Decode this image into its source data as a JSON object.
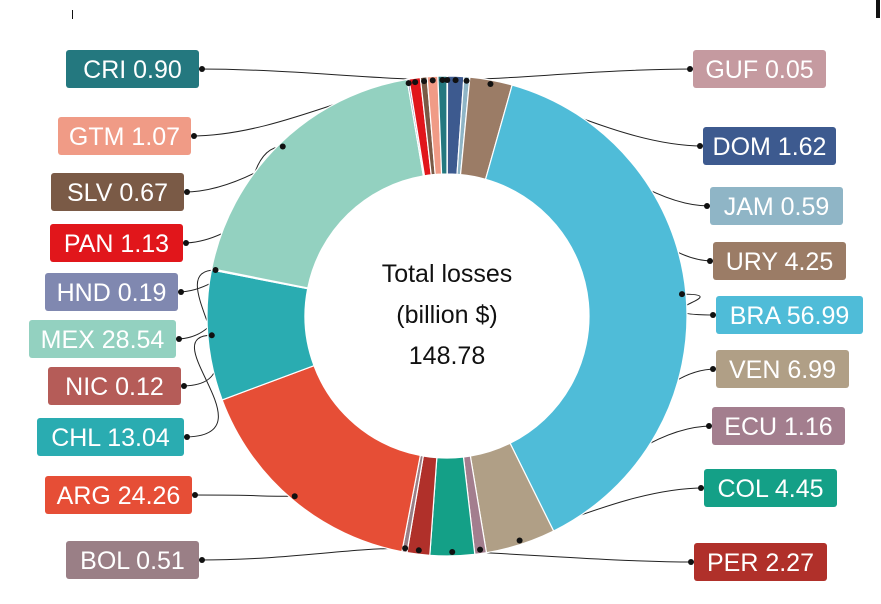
{
  "chart_data": {
    "type": "pie",
    "variant": "donut",
    "center_label": {
      "line1": "Total losses",
      "line2": "(billion $)",
      "line3": "148.78"
    },
    "slices": [
      {
        "code": "GUF",
        "value": 0.05,
        "label": "GUF 0.05",
        "color": "#c59aa0",
        "side": "right"
      },
      {
        "code": "DOM",
        "value": 1.62,
        "label": "DOM 1.62",
        "color": "#3d5a8f",
        "side": "right"
      },
      {
        "code": "JAM",
        "value": 0.59,
        "label": "JAM 0.59",
        "color": "#8fb5c6",
        "side": "right"
      },
      {
        "code": "URY",
        "value": 4.25,
        "label": "URY 4.25",
        "color": "#9b7c66",
        "side": "right"
      },
      {
        "code": "BRA",
        "value": 56.99,
        "label": "BRA 56.99",
        "color": "#4fbcd8",
        "side": "right"
      },
      {
        "code": "VEN",
        "value": 6.99,
        "label": "VEN 6.99",
        "color": "#b09f86",
        "side": "right"
      },
      {
        "code": "ECU",
        "value": 1.16,
        "label": "ECU 1.16",
        "color": "#a37e8e",
        "side": "right"
      },
      {
        "code": "COL",
        "value": 4.45,
        "label": "COL 4.45",
        "color": "#14a087",
        "side": "right"
      },
      {
        "code": "PER",
        "value": 2.27,
        "label": "PER 2.27",
        "color": "#b0302a",
        "side": "right"
      },
      {
        "code": "BOL",
        "value": 0.51,
        "label": "BOL 0.51",
        "color": "#9a7f86",
        "side": "left"
      },
      {
        "code": "ARG",
        "value": 24.26,
        "label": "ARG 24.26",
        "color": "#e64e36",
        "side": "left"
      },
      {
        "code": "CHL",
        "value": 13.04,
        "label": "CHL 13.04",
        "color": "#2aacb1",
        "side": "left"
      },
      {
        "code": "NIC",
        "value": 0.12,
        "label": "NIC 0.12",
        "color": "#b55c58",
        "side": "left"
      },
      {
        "code": "MEX",
        "value": 28.54,
        "label": "MEX 28.54",
        "color": "#93d1c0",
        "side": "left"
      },
      {
        "code": "HND",
        "value": 0.19,
        "label": "HND 0.19",
        "color": "#8088b0",
        "side": "left"
      },
      {
        "code": "PAN",
        "value": 1.13,
        "label": "PAN 1.13",
        "color": "#e1161b",
        "side": "left"
      },
      {
        "code": "SLV",
        "value": 0.67,
        "label": "SLV 0.67",
        "color": "#7a5a46",
        "side": "left"
      },
      {
        "code": "GTM",
        "value": 1.07,
        "label": "GTM 1.07",
        "color": "#f09b86",
        "side": "left"
      },
      {
        "code": "CRI",
        "value": 0.9,
        "label": "CRI 0.90",
        "color": "#24787f",
        "side": "left"
      }
    ]
  }
}
